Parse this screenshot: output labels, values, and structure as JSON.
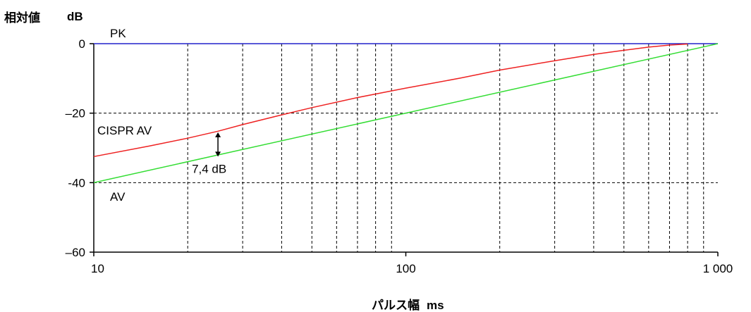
{
  "chart_data": {
    "type": "line",
    "ylabel": "相対値",
    "yunit": "dB",
    "xlabel": "パルス幅",
    "xunit": "ms",
    "xscale": "log",
    "xlim": [
      10,
      1000
    ],
    "ylim": [
      -60,
      0
    ],
    "xticks": [
      {
        "value": 10,
        "label": "10"
      },
      {
        "value": 100,
        "label": "100"
      },
      {
        "value": 1000,
        "label": "1 000"
      }
    ],
    "yticks": [
      {
        "value": 0,
        "label": "0"
      },
      {
        "value": -20,
        "label": "–20"
      },
      {
        "value": -40,
        "label": "-40"
      },
      {
        "value": -60,
        "label": "–60"
      }
    ],
    "grid": true,
    "series": [
      {
        "name": "PK",
        "color": "#2222cc",
        "points": [
          [
            10,
            0
          ],
          [
            1000,
            0
          ]
        ]
      },
      {
        "name": "CISPR AV",
        "color": "#ee2222",
        "points": [
          [
            10,
            -32.5
          ],
          [
            15,
            -29.5
          ],
          [
            20,
            -27.2
          ],
          [
            25,
            -25.2
          ],
          [
            30,
            -23.3
          ],
          [
            40,
            -20.5
          ],
          [
            50,
            -18.4
          ],
          [
            70,
            -15.5
          ],
          [
            100,
            -12.8
          ],
          [
            150,
            -9.9
          ],
          [
            200,
            -7.6
          ],
          [
            300,
            -4.9
          ],
          [
            400,
            -3.1
          ],
          [
            500,
            -1.9
          ],
          [
            600,
            -1.0
          ],
          [
            700,
            -0.4
          ],
          [
            800,
            -0.1
          ]
        ]
      },
      {
        "name": "AV",
        "color": "#33dd33",
        "points": [
          [
            10,
            -40
          ],
          [
            1000,
            0
          ]
        ]
      }
    ],
    "annotations": [
      {
        "text": "7,4 dB",
        "x": 25,
        "y": [
          -25.3,
          -32.7
        ]
      }
    ]
  }
}
